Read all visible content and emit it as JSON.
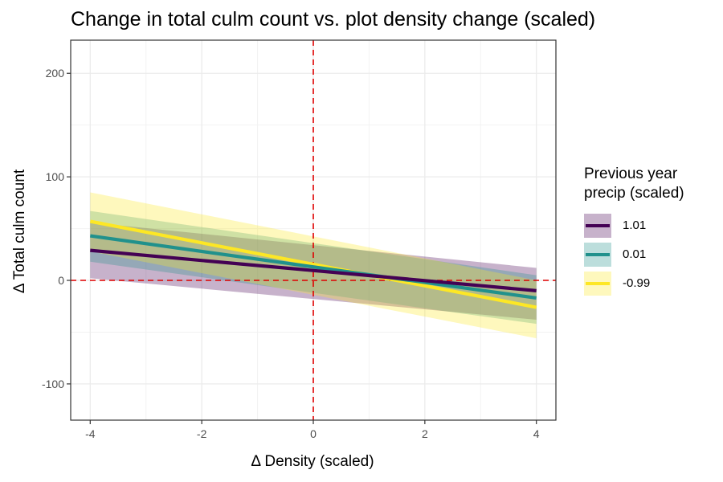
{
  "chart_data": {
    "type": "line",
    "title": "Change in total culm count vs. plot density change (scaled)",
    "xlabel": "Δ Density (scaled)",
    "ylabel": "Δ Total culm count",
    "xlim": [
      -4.35,
      4.35
    ],
    "ylim": [
      -135,
      232
    ],
    "x_ticks": [
      -4,
      -2,
      0,
      2,
      4
    ],
    "y_ticks": [
      -100,
      0,
      100,
      200
    ],
    "x_tick_labels": [
      "-4",
      "-2",
      "0",
      "2",
      "4"
    ],
    "y_tick_labels": [
      "-100",
      "0",
      "100",
      "200"
    ],
    "grid": true,
    "reference_lines": {
      "x": 0,
      "y": 0,
      "color": "#e00000",
      "style": "dashed"
    },
    "legend": {
      "title_lines": [
        "Previous year",
        "precip (scaled)"
      ],
      "position": "right"
    },
    "x": [
      -4,
      4
    ],
    "series": [
      {
        "name": "1.01",
        "color": "#440154",
        "fit": [
          29,
          -10
        ],
        "lower": [
          2,
          -38
        ],
        "upper": [
          56,
          12
        ]
      },
      {
        "name": "0.01",
        "color": "#21918c",
        "fit": [
          43,
          -17
        ],
        "lower": [
          18,
          -42
        ],
        "upper": [
          67,
          5
        ]
      },
      {
        "name": "-0.99",
        "color": "#fde725",
        "fit": [
          57,
          -26
        ],
        "lower": [
          28,
          -56
        ],
        "upper": [
          85,
          0
        ]
      }
    ]
  }
}
